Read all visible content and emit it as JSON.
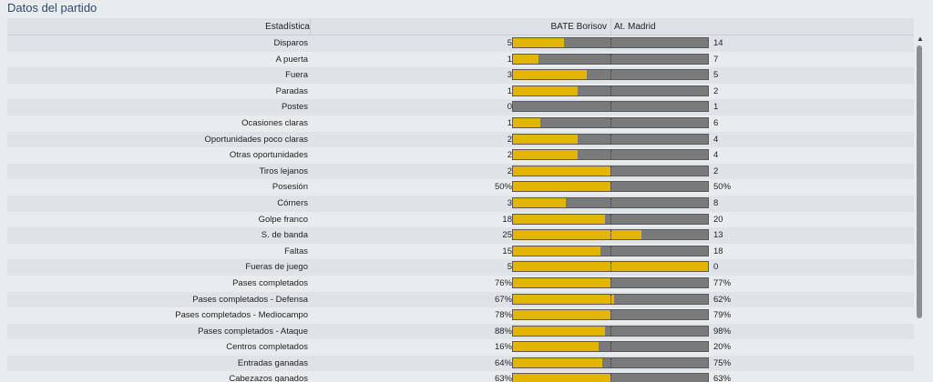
{
  "panel": {
    "title": "Datos del partido"
  },
  "header": {
    "stat": "Estadística",
    "home": "BATE Borisov",
    "away": "At. Madrid"
  },
  "rows": [
    {
      "label": "Disparos",
      "home": "5",
      "away": "14",
      "home_share": 0.26
    },
    {
      "label": "A puerta",
      "home": "1",
      "away": "7",
      "home_share": 0.13
    },
    {
      "label": "Fuera",
      "home": "3",
      "away": "5",
      "home_share": 0.38
    },
    {
      "label": "Paradas",
      "home": "1",
      "away": "2",
      "home_share": 0.33
    },
    {
      "label": "Postes",
      "home": "0",
      "away": "1",
      "home_share": 0.0
    },
    {
      "label": "Ocasiones claras",
      "home": "1",
      "away": "6",
      "home_share": 0.14
    },
    {
      "label": "Oportunidades poco claras",
      "home": "2",
      "away": "4",
      "home_share": 0.33
    },
    {
      "label": "Otras oportunidades",
      "home": "2",
      "away": "4",
      "home_share": 0.33
    },
    {
      "label": "Tiros lejanos",
      "home": "2",
      "away": "2",
      "home_share": 0.5
    },
    {
      "label": "Posesión",
      "home": "50%",
      "away": "50%",
      "home_share": 0.5
    },
    {
      "label": "Córners",
      "home": "3",
      "away": "8",
      "home_share": 0.27
    },
    {
      "label": "Golpe franco",
      "home": "18",
      "away": "20",
      "home_share": 0.47
    },
    {
      "label": "S. de banda",
      "home": "25",
      "away": "13",
      "home_share": 0.66
    },
    {
      "label": "Faltas",
      "home": "15",
      "away": "18",
      "home_share": 0.45
    },
    {
      "label": "Fueras de juego",
      "home": "5",
      "away": "0",
      "home_share": 1.0
    },
    {
      "label": "Pases completados",
      "home": "76%",
      "away": "77%",
      "home_share": 0.5
    },
    {
      "label": "Pases completados - Defensa",
      "home": "67%",
      "away": "62%",
      "home_share": 0.52
    },
    {
      "label": "Pases completados - Mediocampo",
      "home": "78%",
      "away": "79%",
      "home_share": 0.5
    },
    {
      "label": "Pases completados - Ataque",
      "home": "88%",
      "away": "98%",
      "home_share": 0.47
    },
    {
      "label": "Centros completados",
      "home": "16%",
      "away": "20%",
      "home_share": 0.44
    },
    {
      "label": "Entradas ganadas",
      "home": "64%",
      "away": "75%",
      "home_share": 0.46
    },
    {
      "label": "Cabezazos ganados",
      "home": "63%",
      "away": "63%",
      "home_share": 0.5
    }
  ],
  "colors": {
    "home": "#e2b600",
    "away": "#7a7a7a"
  }
}
